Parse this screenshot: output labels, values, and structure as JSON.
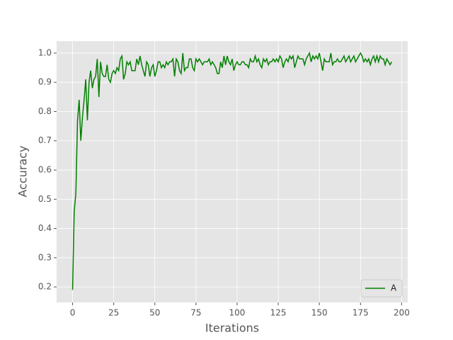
{
  "chart_data": {
    "type": "line",
    "x_label": "Iterations",
    "y_label": "Accuracy",
    "xlim": [
      -9.7,
      203.7
    ],
    "ylim": [
      0.147,
      1.041
    ],
    "xticks": [
      0,
      25,
      50,
      75,
      100,
      125,
      150,
      175,
      200
    ],
    "yticks": [
      0.2,
      0.3,
      0.4,
      0.5,
      0.6,
      0.7,
      0.8,
      0.9,
      {
        "value": 1,
        "label": "1.0"
      }
    ],
    "grid": true,
    "legend": "lower right",
    "x": [
      0,
      1,
      2,
      3,
      4,
      5,
      6,
      7,
      8,
      9,
      10,
      11,
      12,
      13,
      14,
      15,
      16,
      17,
      18,
      19,
      20,
      21,
      22,
      23,
      24,
      25,
      26,
      27,
      28,
      29,
      30,
      31,
      32,
      33,
      34,
      35,
      36,
      37,
      38,
      39,
      40,
      41,
      42,
      43,
      44,
      45,
      46,
      47,
      48,
      49,
      50,
      51,
      52,
      53,
      54,
      55,
      56,
      57,
      58,
      59,
      60,
      61,
      62,
      63,
      64,
      65,
      66,
      67,
      68,
      69,
      70,
      71,
      72,
      73,
      74,
      75,
      76,
      77,
      78,
      79,
      80,
      81,
      82,
      83,
      84,
      85,
      86,
      87,
      88,
      89,
      90,
      91,
      92,
      93,
      94,
      95,
      96,
      97,
      98,
      99,
      100,
      101,
      102,
      103,
      104,
      105,
      106,
      107,
      108,
      109,
      110,
      111,
      112,
      113,
      114,
      115,
      116,
      117,
      118,
      119,
      120,
      121,
      122,
      123,
      124,
      125,
      126,
      127,
      128,
      129,
      130,
      131,
      132,
      133,
      134,
      135,
      136,
      137,
      138,
      139,
      140,
      141,
      142,
      143,
      144,
      145,
      146,
      147,
      148,
      149,
      150,
      151,
      152,
      153,
      154,
      155,
      156,
      157,
      158,
      159,
      160,
      161,
      162,
      163,
      164,
      165,
      166,
      167,
      168,
      169,
      170,
      171,
      172,
      173,
      174,
      175,
      176,
      177,
      178,
      179,
      180,
      181,
      182,
      183,
      184,
      185,
      186,
      187,
      188,
      189,
      190,
      191,
      192,
      193,
      194
    ],
    "series": [
      {
        "name": "A",
        "color": "#008000",
        "values": [
          0.19,
          0.46,
          0.52,
          0.77,
          0.84,
          0.7,
          0.78,
          0.84,
          0.91,
          0.77,
          0.9,
          0.94,
          0.88,
          0.91,
          0.92,
          0.98,
          0.85,
          0.97,
          0.93,
          0.92,
          0.92,
          0.96,
          0.91,
          0.9,
          0.93,
          0.94,
          0.93,
          0.95,
          0.94,
          0.98,
          0.99,
          0.91,
          0.93,
          0.97,
          0.96,
          0.97,
          0.94,
          0.94,
          0.94,
          0.98,
          0.96,
          0.99,
          0.96,
          0.94,
          0.92,
          0.97,
          0.96,
          0.92,
          0.95,
          0.96,
          0.92,
          0.94,
          0.97,
          0.97,
          0.95,
          0.96,
          0.95,
          0.97,
          0.96,
          0.97,
          0.97,
          0.98,
          0.92,
          0.98,
          0.97,
          0.94,
          0.93,
          1.0,
          0.94,
          0.95,
          0.95,
          0.98,
          0.98,
          0.95,
          0.94,
          0.98,
          0.97,
          0.98,
          0.97,
          0.96,
          0.97,
          0.97,
          0.97,
          0.98,
          0.96,
          0.97,
          0.96,
          0.95,
          0.93,
          0.93,
          0.97,
          0.95,
          0.99,
          0.96,
          0.99,
          0.97,
          0.96,
          0.98,
          0.94,
          0.96,
          0.97,
          0.96,
          0.96,
          0.97,
          0.97,
          0.96,
          0.96,
          0.95,
          0.98,
          0.97,
          0.97,
          0.99,
          0.97,
          0.98,
          0.96,
          0.95,
          0.98,
          0.97,
          0.98,
          0.96,
          0.97,
          0.97,
          0.98,
          0.97,
          0.98,
          0.97,
          0.99,
          0.98,
          0.95,
          0.97,
          0.98,
          0.97,
          0.99,
          0.98,
          0.99,
          0.95,
          0.97,
          0.99,
          0.98,
          0.98,
          0.98,
          0.96,
          0.98,
          0.99,
          1.0,
          0.97,
          0.99,
          0.98,
          0.99,
          0.98,
          1.0,
          0.97,
          0.94,
          0.98,
          0.97,
          0.97,
          0.97,
          1.0,
          0.96,
          0.97,
          0.97,
          0.98,
          0.97,
          0.97,
          0.98,
          0.99,
          0.97,
          0.98,
          0.99,
          0.97,
          0.98,
          0.99,
          0.97,
          0.98,
          0.99,
          1.0,
          0.99,
          0.97,
          0.98,
          0.97,
          0.98,
          0.96,
          0.98,
          0.99,
          0.97,
          0.99,
          0.97,
          0.99,
          0.98,
          0.98,
          0.96,
          0.98,
          0.97,
          0.96,
          0.97
        ]
      }
    ]
  }
}
